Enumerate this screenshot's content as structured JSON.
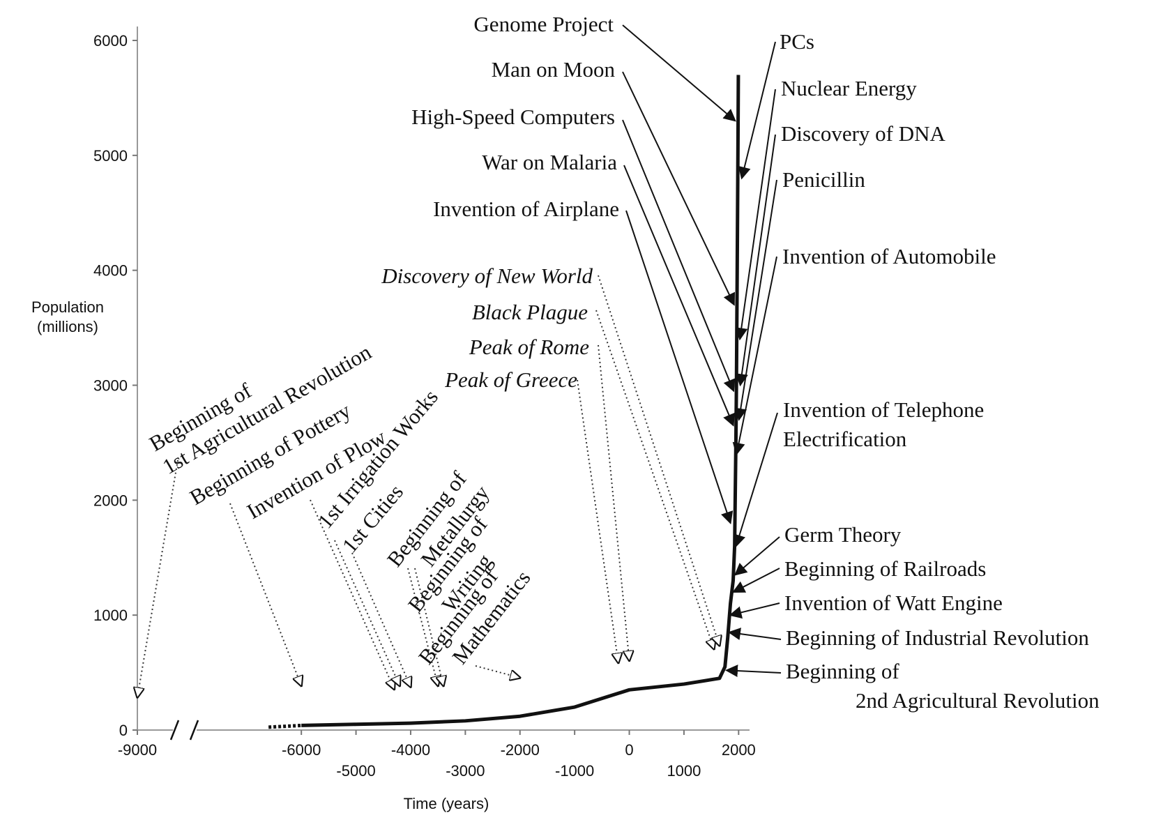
{
  "chart_data": {
    "type": "line",
    "xlabel": "Time (years)",
    "ylabel": "Population\n(millions)",
    "xlim": [
      -9000,
      2200
    ],
    "ylim": [
      0,
      6000
    ],
    "x_ticks_top": [
      "-9000",
      "-6000",
      "-4000",
      "-2000",
      "0",
      "2000"
    ],
    "x_ticks_top_values": [
      -9000,
      -6000,
      -4000,
      -2000,
      0,
      2000
    ],
    "x_ticks_bottom": [
      "-5000",
      "-3000",
      "-1000",
      "1000"
    ],
    "x_ticks_bottom_values": [
      -5000,
      -3000,
      -1000,
      1000
    ],
    "y_ticks": [
      "0",
      "1000",
      "2000",
      "3000",
      "4000",
      "5000",
      "6000"
    ],
    "y_tick_values": [
      0,
      1000,
      2000,
      3000,
      4000,
      5000,
      6000
    ],
    "axis_break": true,
    "series": [
      {
        "x": [
          -6600,
          -6000,
          -5000,
          -4000,
          -3000,
          -2000,
          -1000,
          0,
          1000,
          1650,
          1750,
          1800,
          1850,
          1900,
          1927,
          1950,
          1960,
          1974,
          1987,
          1995
        ],
        "y": [
          25,
          40,
          50,
          60,
          80,
          120,
          200,
          350,
          400,
          450,
          550,
          800,
          1100,
          1300,
          1600,
          2500,
          3000,
          4000,
          5000,
          5700
        ],
        "dotted_until_x": -6000
      }
    ],
    "annotations_left": [
      {
        "text": [
          "Beginning of",
          "1st Agricultural Revolution"
        ],
        "x": -9000,
        "y": 200
      },
      {
        "text": [
          "Beginning of Pottery"
        ],
        "x": -6000,
        "y": 300
      },
      {
        "text": [
          "Invention of Plow"
        ],
        "x": -4300,
        "y": 270
      },
      {
        "text": [
          "1st Irrigation Works"
        ],
        "x": -4200,
        "y": 300
      },
      {
        "text": [
          "1st Cities"
        ],
        "x": -4000,
        "y": 290
      },
      {
        "text": [
          "Beginning of",
          "Metallurgy"
        ],
        "x": -3500,
        "y": 300
      },
      {
        "text": [
          "Beginning of",
          "Writing"
        ],
        "x": -3400,
        "y": 300
      },
      {
        "text": [
          "Beginning of",
          "Mathematics"
        ],
        "x": -2000,
        "y": 370
      },
      {
        "text": [
          "Peak of Greece"
        ],
        "x": -200,
        "y": 500
      },
      {
        "text": [
          "Peak of Rome"
        ],
        "x": 0,
        "y": 520
      },
      {
        "text": [
          "Black Plague"
        ],
        "x": 1550,
        "y": 620
      },
      {
        "text": [
          "Discovery of New World"
        ],
        "x": 1650,
        "y": 650
      }
    ],
    "annotations_right_left_side": [
      {
        "text": [
          "Genome Project"
        ],
        "x": 1990,
        "y": 5300
      },
      {
        "text": [
          "Man on Moon"
        ],
        "x": 1969,
        "y": 3700
      },
      {
        "text": [
          "High-Speed Computers"
        ],
        "x": 1960,
        "y": 2950
      },
      {
        "text": [
          "War on Malaria"
        ],
        "x": 1955,
        "y": 2650
      },
      {
        "text": [
          "Invention of Airplane"
        ],
        "x": 1903,
        "y": 1800
      }
    ],
    "annotations_right": [
      {
        "text": [
          "PCs"
        ],
        "x": 1980,
        "y": 4800
      },
      {
        "text": [
          "Nuclear Energy"
        ],
        "x": 1945,
        "y": 3400
      },
      {
        "text": [
          "Discovery of DNA"
        ],
        "x": 1953,
        "y": 3000
      },
      {
        "text": [
          "Penicillin"
        ],
        "x": 1929,
        "y": 2700
      },
      {
        "text": [
          "Invention of Automobile"
        ],
        "x": 1885,
        "y": 2400
      },
      {
        "text": [
          "Invention of Telephone",
          "Electrification"
        ],
        "x": 1876,
        "y": 1600
      },
      {
        "text": [
          "Germ Theory"
        ],
        "x": 1860,
        "y": 1350
      },
      {
        "text": [
          "Beginning of Railroads"
        ],
        "x": 1825,
        "y": 1200
      },
      {
        "text": [
          "Invention of Watt Engine"
        ],
        "x": 1769,
        "y": 1000
      },
      {
        "text": [
          "Beginning of Industrial Revolution"
        ],
        "x": 1750,
        "y": 850
      },
      {
        "text": [
          "Beginning of",
          "2nd Agricultural Revolution"
        ],
        "x": 1700,
        "y": 520
      }
    ]
  }
}
